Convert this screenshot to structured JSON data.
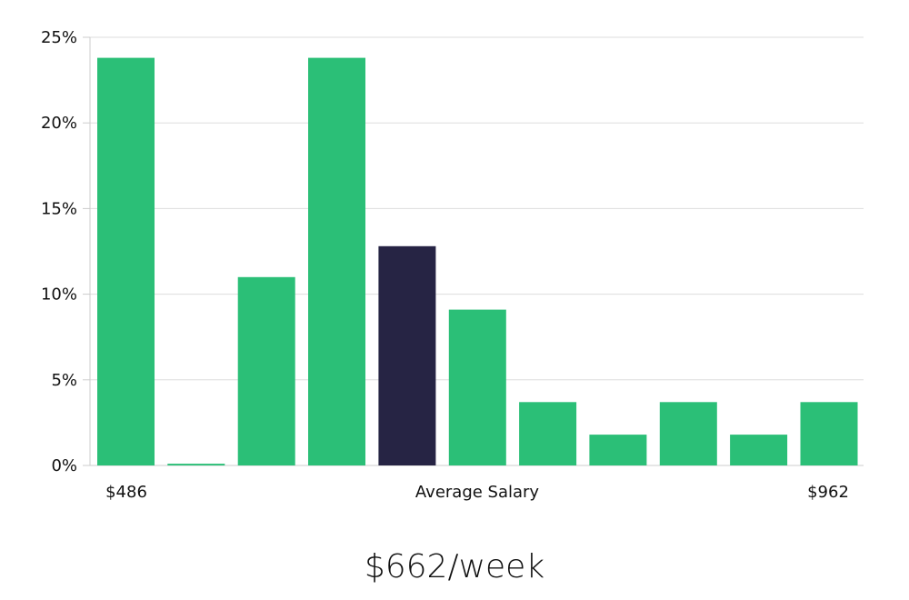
{
  "chart_data": {
    "type": "bar",
    "categories": [
      "",
      "",
      "",
      "",
      "",
      "",
      "",
      "",
      "",
      "",
      ""
    ],
    "values": [
      23.8,
      0.1,
      11.0,
      23.8,
      12.8,
      9.1,
      3.7,
      1.8,
      3.7,
      1.8,
      3.7
    ],
    "highlight_index": 4,
    "ylim": [
      0,
      25
    ],
    "yticks": [
      "0%",
      "5%",
      "10%",
      "15%",
      "20%",
      "25%"
    ],
    "ytick_values": [
      0,
      5,
      10,
      15,
      20,
      25
    ],
    "grid": true,
    "xlabel": "Average Salary",
    "x_min_label": "$486",
    "x_max_label": "$962",
    "colors": {
      "bar": "#2BBF77",
      "highlight": "#262444",
      "grid": "#DDDDDD",
      "axis": "#CCCCCC"
    }
  },
  "summary": {
    "salary_text": "$662/week"
  }
}
